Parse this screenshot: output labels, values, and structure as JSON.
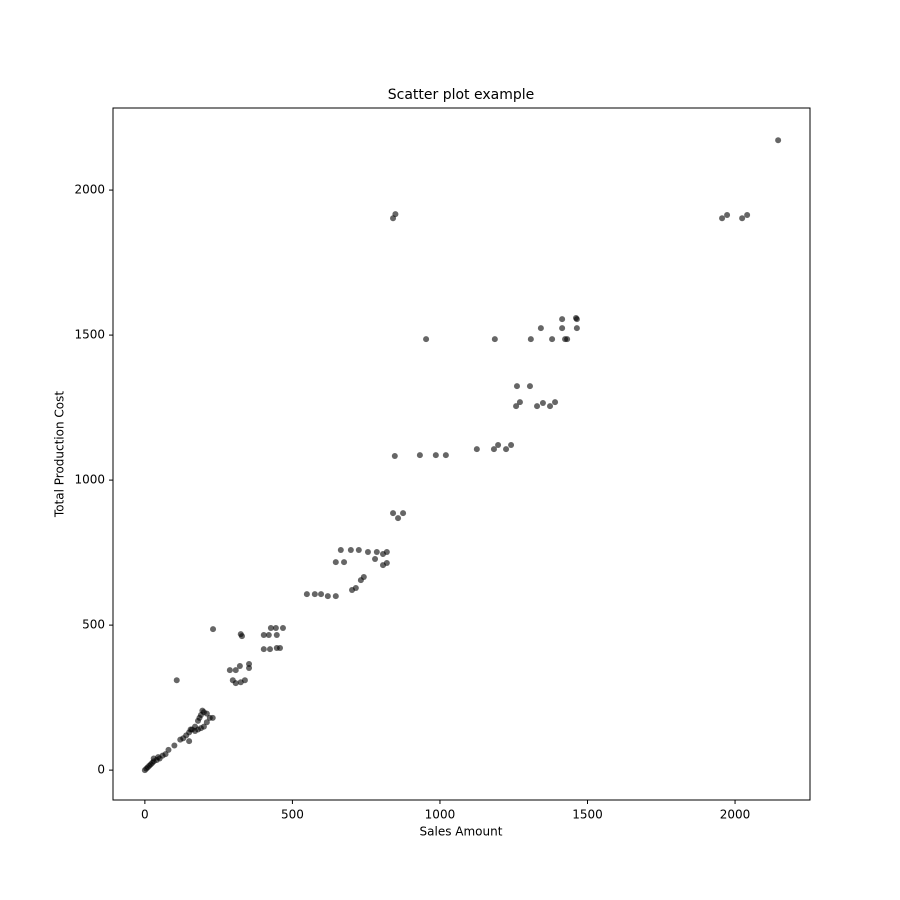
{
  "chart_data": {
    "type": "scatter",
    "title": "Scatter plot example",
    "x_label": "Sales Amount",
    "y_label": "Total Production Cost",
    "color": "#000000",
    "alpha": 0.6,
    "grid": false,
    "xlim": [
      -108,
      2254
    ],
    "ylim": [
      -103,
      2283
    ],
    "xticks": [
      0,
      500,
      1000,
      1500,
      2000
    ],
    "yticks": [
      0,
      500,
      1000,
      1500,
      2000
    ],
    "x": [
      2146,
      1956,
      1973,
      2024,
      2041,
      841,
      849,
      953,
      1186,
      1308,
      1380,
      1424,
      1431,
      1342,
      1414,
      1464,
      1414,
      1464,
      1461,
      1261,
      1305,
      1258,
      1271,
      1329,
      1349,
      1373,
      1390,
      1125,
      1183,
      1197,
      1224,
      1241,
      847,
      932,
      986,
      1020,
      841,
      858,
      875,
      664,
      698,
      725,
      756,
      786,
      807,
      820,
      780,
      647,
      675,
      807,
      820,
      742,
      732,
      715,
      702,
      549,
      576,
      597,
      620,
      647,
      231,
      325,
      329,
      403,
      427,
      444,
      468,
      420,
      447,
      403,
      424,
      447,
      458,
      288,
      308,
      322,
      353,
      353,
      308,
      325,
      339,
      298,
      108,
      0,
      5,
      10,
      15,
      20,
      25,
      30,
      30,
      40,
      45,
      50,
      60,
      70,
      80,
      100,
      120,
      130,
      140,
      150,
      155,
      160,
      170,
      180,
      185,
      190,
      200,
      210,
      195,
      220,
      230,
      180,
      200,
      210,
      150,
      170,
      190
    ],
    "values": [
      2172,
      1903,
      1914,
      1903,
      1914,
      1903,
      1917,
      1486,
      1486,
      1486,
      1486,
      1486,
      1486,
      1524,
      1524,
      1524,
      1555,
      1555,
      1559,
      1324,
      1324,
      1255,
      1269,
      1255,
      1266,
      1255,
      1269,
      1107,
      1107,
      1121,
      1107,
      1121,
      1083,
      1086,
      1086,
      1086,
      886,
      869,
      886,
      759,
      759,
      759,
      752,
      752,
      745,
      752,
      728,
      717,
      717,
      707,
      714,
      666,
      655,
      628,
      621,
      607,
      607,
      607,
      600,
      600,
      486,
      469,
      462,
      466,
      490,
      490,
      490,
      466,
      466,
      417,
      417,
      421,
      421,
      345,
      345,
      359,
      366,
      352,
      300,
      303,
      310,
      310,
      310,
      0,
      5,
      10,
      15,
      20,
      25,
      30,
      40,
      35,
      45,
      40,
      50,
      55,
      70,
      85,
      105,
      110,
      120,
      130,
      140,
      140,
      150,
      170,
      180,
      190,
      200,
      195,
      205,
      180,
      180,
      140,
      150,
      165,
      100,
      135,
      145
    ]
  }
}
